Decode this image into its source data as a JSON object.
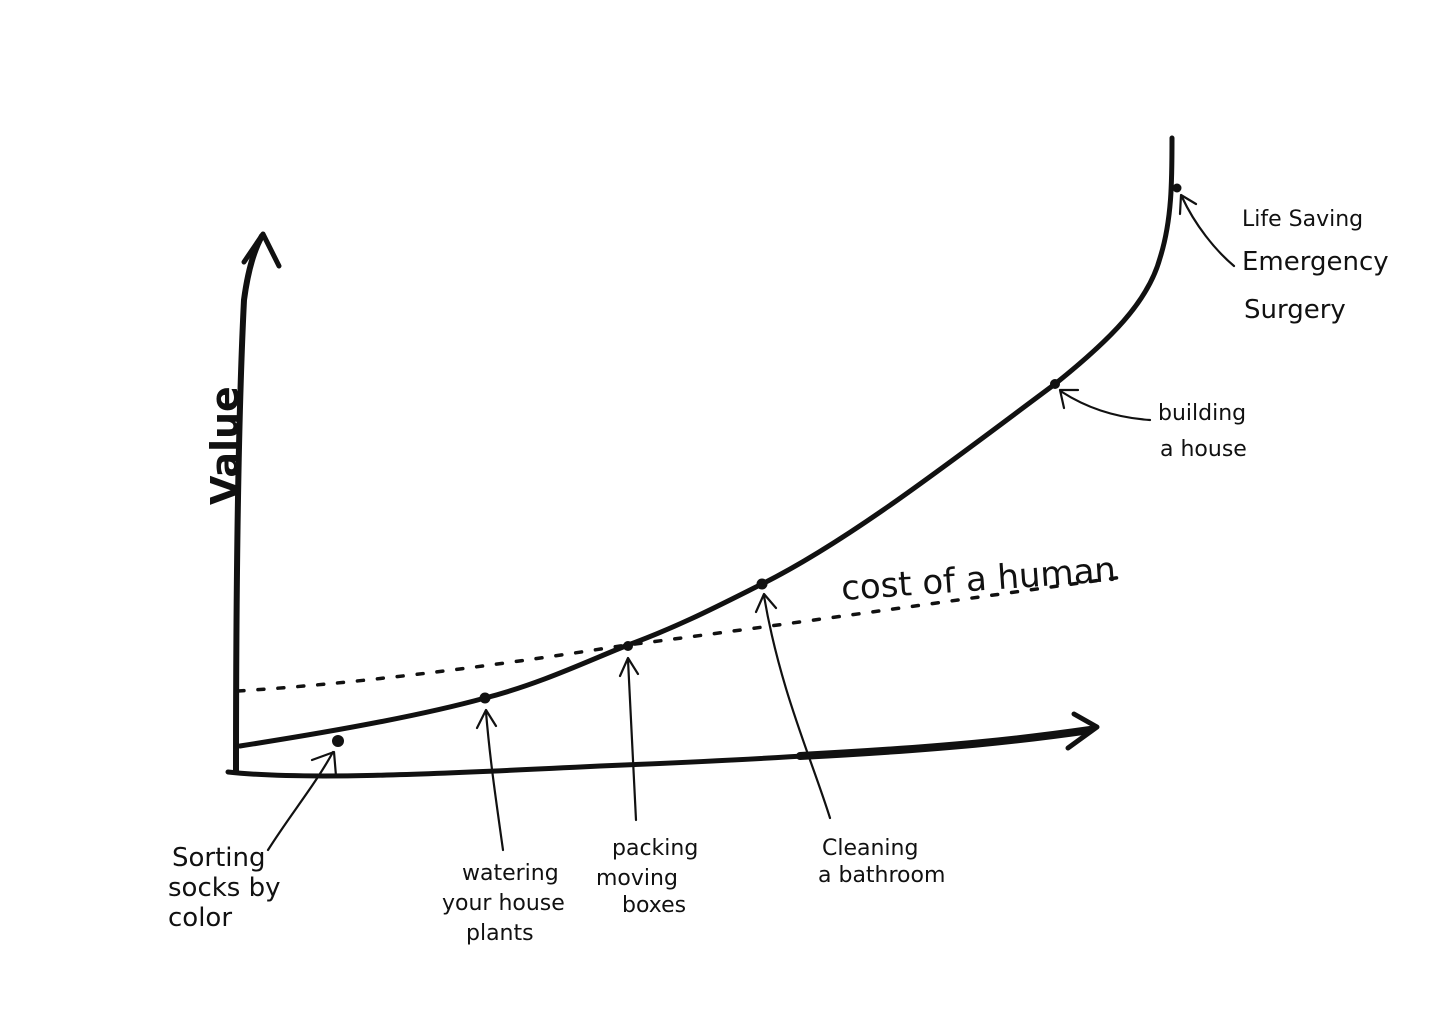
{
  "axis": {
    "y_label": "Value"
  },
  "cost_line": {
    "label": "cost of a human"
  },
  "tasks": [
    {
      "id": "sorting-socks",
      "lines": [
        "Sorting",
        "socks by",
        "color"
      ]
    },
    {
      "id": "watering-plants",
      "lines": [
        "watering",
        "your house",
        "plants"
      ]
    },
    {
      "id": "packing-boxes",
      "lines": [
        "packing",
        "moving",
        "boxes"
      ]
    },
    {
      "id": "cleaning-bathroom",
      "lines": [
        "Cleaning",
        "a bathroom"
      ]
    },
    {
      "id": "building-house",
      "lines": [
        "building",
        "a house"
      ]
    },
    {
      "id": "life-saving-surgery",
      "lines": [
        "Life Saving",
        "Emergency",
        "Surgery"
      ]
    }
  ],
  "colors": {
    "ink": "#111111",
    "background": "#ffffff"
  }
}
